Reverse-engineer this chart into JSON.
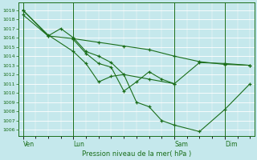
{
  "title": "Pression niveau de la mer( hPa )",
  "ylabel_ticks": [
    1006,
    1007,
    1008,
    1009,
    1010,
    1011,
    1012,
    1013,
    1014,
    1015,
    1016,
    1017,
    1018,
    1019
  ],
  "ylim": [
    1005.3,
    1019.8
  ],
  "background_color": "#c5e8ec",
  "grid_color": "#ffffff",
  "line_color": "#1a6e1a",
  "xtick_labels": [
    "Ven",
    "Lun",
    "Sam",
    "Dim"
  ],
  "xtick_positions": [
    0,
    24,
    72,
    96
  ],
  "xlim": [
    -2,
    110
  ],
  "series": [
    {
      "x": [
        0,
        12,
        24,
        36,
        48,
        60,
        72,
        84,
        96,
        108
      ],
      "y": [
        1019.0,
        1016.2,
        1015.9,
        1015.5,
        1015.1,
        1014.7,
        1014.0,
        1013.4,
        1013.1,
        1013.0
      ]
    },
    {
      "x": [
        0,
        12,
        18,
        24,
        30,
        36,
        42,
        48,
        60,
        72,
        84,
        96,
        108
      ],
      "y": [
        1018.5,
        1016.2,
        1017.0,
        1016.0,
        1014.5,
        1014.0,
        1013.3,
        1012.0,
        1011.5,
        1011.0,
        1013.3,
        1013.2,
        1013.0
      ]
    },
    {
      "x": [
        0,
        12,
        24,
        30,
        36,
        42,
        48,
        54,
        60,
        66,
        72,
        84,
        96,
        108
      ],
      "y": [
        1019.0,
        1016.3,
        1014.5,
        1013.2,
        1011.2,
        1011.8,
        1012.0,
        1009.0,
        1008.5,
        1007.0,
        1006.5,
        1005.8,
        1008.2,
        1011.0
      ]
    },
    {
      "x": [
        24,
        30,
        36,
        42,
        48,
        54,
        60,
        66,
        72
      ],
      "y": [
        1015.8,
        1014.3,
        1013.2,
        1012.8,
        1010.2,
        1011.2,
        1012.3,
        1011.5,
        1011.0
      ]
    }
  ],
  "figsize": [
    3.2,
    2.0
  ],
  "dpi": 100
}
